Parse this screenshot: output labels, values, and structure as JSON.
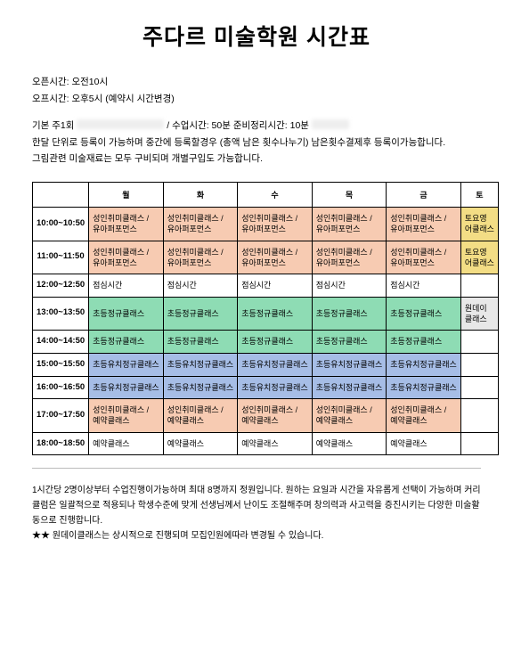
{
  "title": "주다르 미술학원 시간표",
  "info": {
    "open_label": "오픈시간: 오전10시",
    "close_label": "오프시간: 오후5시 (예약시 시간변경)",
    "desc1a": "기본 주1회",
    "desc1b": "/ 수업시간: 50분 준비정리시간: 10분",
    "desc2": "한달 단위로 등록이 가능하며 중간에 등록할경우 (총액 남은 횟수나누기) 남은횟수결제후 등록이가능합니다.",
    "desc3": "그림관련 미술재료는 모두 구비되며 개별구입도 가능합니다."
  },
  "colors": {
    "peach": "#f7cbb2",
    "yellow": "#f3dd85",
    "green": "#8edcb4",
    "blue": "#a6bde6",
    "gray": "#e8e8e8",
    "white": "#ffffff"
  },
  "days": [
    "",
    "월",
    "화",
    "수",
    "목",
    "금",
    "토"
  ],
  "rows": [
    {
      "time": "10:00~10:50",
      "cells": [
        {
          "txt": "성인취미클래스 / 유아퍼포먼스",
          "color": "peach"
        },
        {
          "txt": "성인취미클래스 / 유아퍼포먼스",
          "color": "peach"
        },
        {
          "txt": "성인취미클래스 / 유아퍼포먼스",
          "color": "peach"
        },
        {
          "txt": "성인취미클래스 / 유아퍼포먼스",
          "color": "peach"
        },
        {
          "txt": "성인취미클래스 / 유아퍼포먼스",
          "color": "peach"
        },
        {
          "txt": "토요영 어클래스",
          "color": "yellow"
        }
      ]
    },
    {
      "time": "11:00~11:50",
      "cells": [
        {
          "txt": "성인취미클래스 / 유아퍼포먼스",
          "color": "peach"
        },
        {
          "txt": "성인취미클래스 / 유아퍼포먼스",
          "color": "peach"
        },
        {
          "txt": "성인취미클래스 / 유아퍼포먼스",
          "color": "peach"
        },
        {
          "txt": "성인취미클래스 / 유아퍼포먼스",
          "color": "peach"
        },
        {
          "txt": "성인취미클래스 / 유아퍼포먼스",
          "color": "peach"
        },
        {
          "txt": "토요영 어클래스",
          "color": "yellow"
        }
      ]
    },
    {
      "time": "12:00~12:50",
      "cells": [
        {
          "txt": "점심시간",
          "color": "white"
        },
        {
          "txt": "점심시간",
          "color": "white"
        },
        {
          "txt": "점심시간",
          "color": "white"
        },
        {
          "txt": "점심시간",
          "color": "white"
        },
        {
          "txt": "점심시간",
          "color": "white"
        },
        {
          "txt": "",
          "color": "white"
        }
      ]
    },
    {
      "time": "13:00~13:50",
      "cells": [
        {
          "txt": "초등정규클래스",
          "color": "green"
        },
        {
          "txt": "초등정규클래스",
          "color": "green"
        },
        {
          "txt": "초등정규클래스",
          "color": "green"
        },
        {
          "txt": "초등정규클래스",
          "color": "green"
        },
        {
          "txt": "초등정규클래스",
          "color": "green"
        },
        {
          "txt": "원데이 클래스",
          "color": "gray"
        }
      ]
    },
    {
      "time": "14:00~14:50",
      "cells": [
        {
          "txt": "초등정규클래스",
          "color": "green"
        },
        {
          "txt": "초등정규클래스",
          "color": "green"
        },
        {
          "txt": "초등정규클래스",
          "color": "green"
        },
        {
          "txt": "초등정규클래스",
          "color": "green"
        },
        {
          "txt": "초등정규클래스",
          "color": "green"
        },
        {
          "txt": "",
          "color": "white"
        }
      ]
    },
    {
      "time": "15:00~15:50",
      "cells": [
        {
          "txt": "초등유치정규클래스",
          "color": "blue"
        },
        {
          "txt": "초등유치정규클래스",
          "color": "blue"
        },
        {
          "txt": "초등유치정규클래스",
          "color": "blue"
        },
        {
          "txt": "초등유치정규클래스",
          "color": "blue"
        },
        {
          "txt": "초등유치정규클래스",
          "color": "blue"
        },
        {
          "txt": "",
          "color": "white"
        }
      ]
    },
    {
      "time": "16:00~16:50",
      "cells": [
        {
          "txt": "초등유치정규클래스",
          "color": "blue"
        },
        {
          "txt": "초등유치정규클래스",
          "color": "blue"
        },
        {
          "txt": "초등유치정규클래스",
          "color": "blue"
        },
        {
          "txt": "초등유치정규클래스",
          "color": "blue"
        },
        {
          "txt": "초등유치정규클래스",
          "color": "blue"
        },
        {
          "txt": "",
          "color": "white"
        }
      ]
    },
    {
      "time": "17:00~17:50",
      "cells": [
        {
          "txt": "성인취미클래스 / 예약클래스",
          "color": "peach"
        },
        {
          "txt": "성인취미클래스 / 예약클래스",
          "color": "peach"
        },
        {
          "txt": "성인취미클래스 / 예약클래스",
          "color": "peach"
        },
        {
          "txt": "성인취미클래스 / 예약클래스",
          "color": "peach"
        },
        {
          "txt": "성인취미클래스 / 예약클래스",
          "color": "peach"
        },
        {
          "txt": "",
          "color": "white"
        }
      ]
    },
    {
      "time": "18:00~18:50",
      "cells": [
        {
          "txt": "예약클래스",
          "color": "white"
        },
        {
          "txt": "예약클래스",
          "color": "white"
        },
        {
          "txt": "예약클래스",
          "color": "white"
        },
        {
          "txt": "예약클래스",
          "color": "white"
        },
        {
          "txt": "예약클래스",
          "color": "white"
        },
        {
          "txt": "",
          "color": "white"
        }
      ]
    }
  ],
  "footnote": {
    "line1": "1시간당 2명이상부터 수업진행이가능하며 최대 8명까지 정원입니다. 원하는 요일과 시간을 자유롭게 선택이 가능하며 커리큘럼은 일괄적으로 적용되나 학생수준에 맞게 선생님께서 난이도 조절해주며 창의력과 사고력을 증진시키는 다양한 미술활동으로 진행합니다.",
    "line2": "★★ 원데이클래스는 상시적으로 진행되며 모집인원에따라 변경될 수 있습니다."
  }
}
